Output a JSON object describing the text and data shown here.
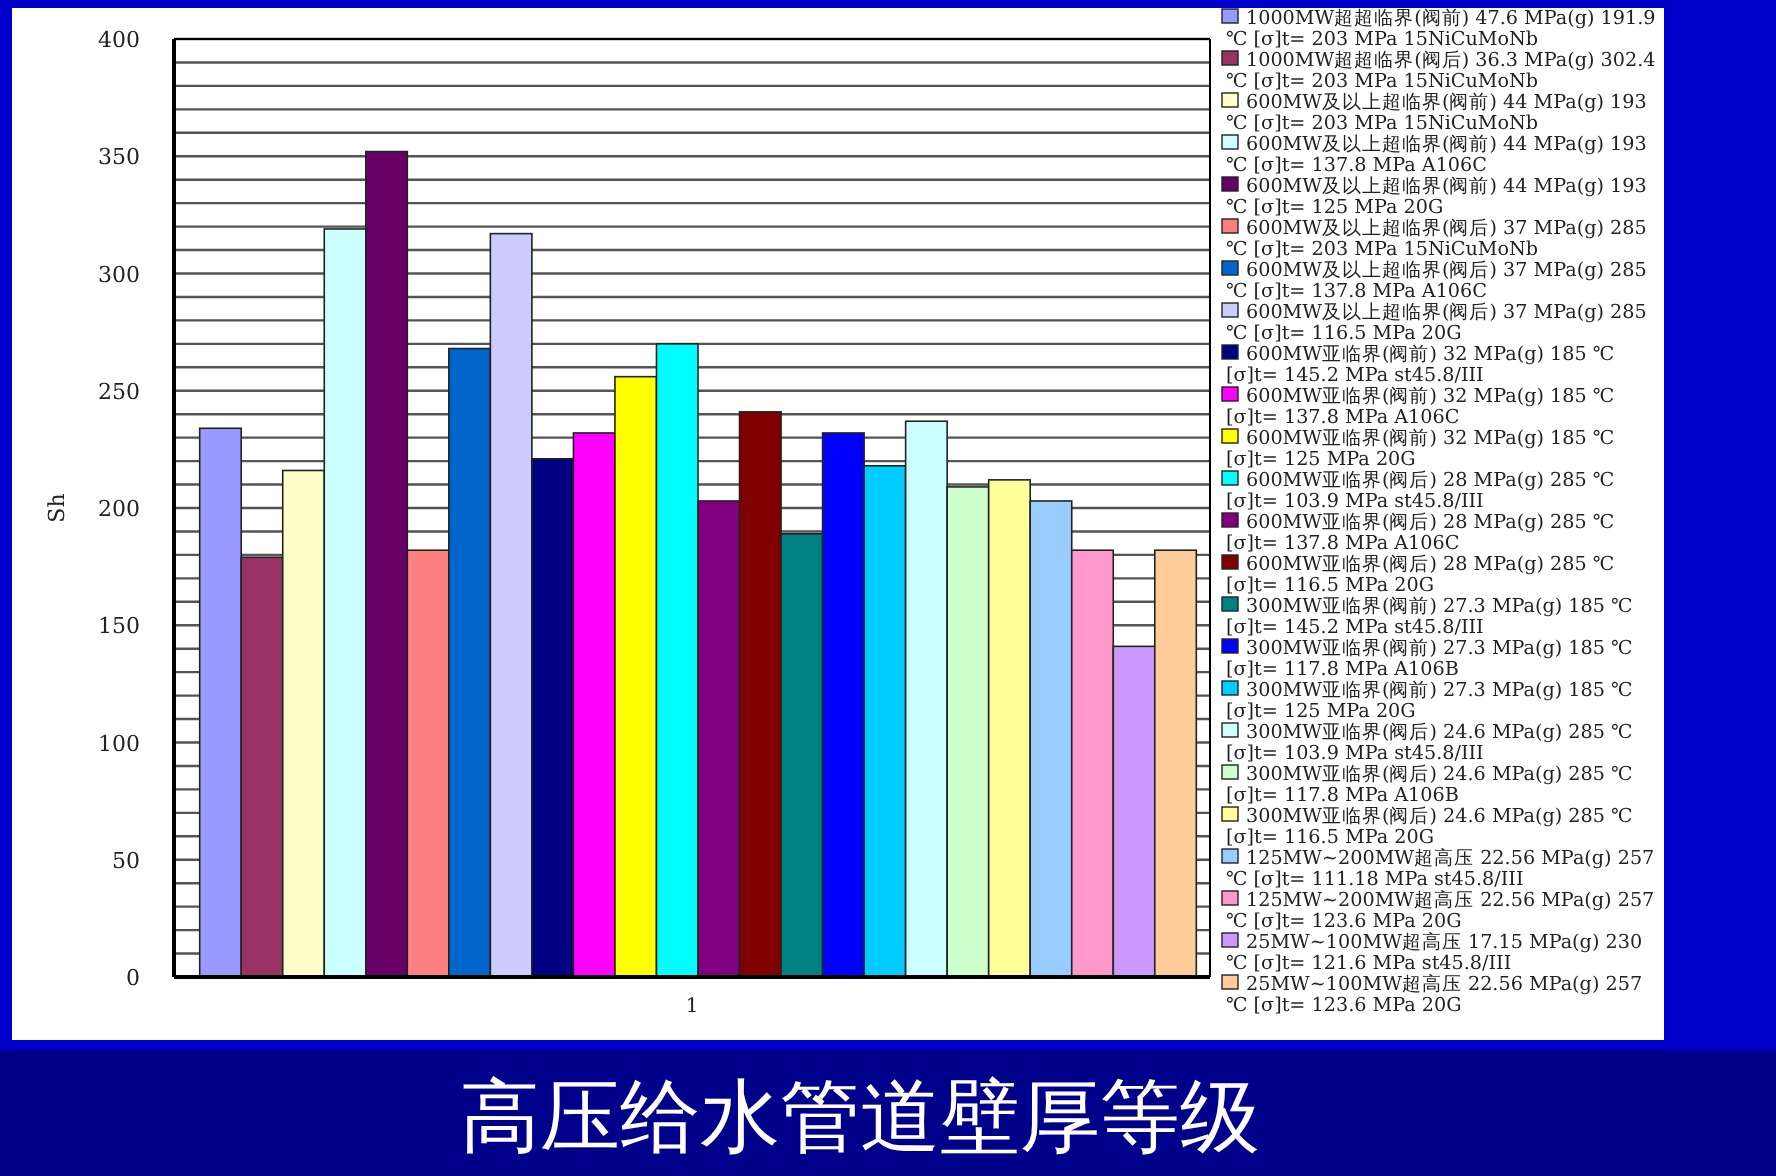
{
  "chart_data": {
    "type": "bar",
    "title": "高压给水管道壁厚等级",
    "ylabel": "Sh",
    "categories": [
      "1"
    ],
    "ylim": [
      0,
      400
    ],
    "yticks": [
      0,
      50,
      100,
      150,
      200,
      250,
      300,
      350,
      400
    ],
    "grid": "y",
    "legend": "right",
    "series": [
      {
        "name": "1000MW超超临界(阀前) 47.6 MPa(g) 191.9 ℃ [σ]t= 203 MPa 15NiCuMoNb",
        "color": "#9999ff",
        "values": [
          234
        ]
      },
      {
        "name": "1000MW超超临界(阀后) 36.3 MPa(g) 302.4 ℃ [σ]t= 203 MPa 15NiCuMoNb",
        "color": "#993366",
        "values": [
          179
        ]
      },
      {
        "name": "600MW及以上超临界(阀前) 44 MPa(g) 193 ℃ [σ]t= 203 MPa 15NiCuMoNb",
        "color": "#ffffcc",
        "values": [
          216
        ]
      },
      {
        "name": "600MW及以上超临界(阀前) 44 MPa(g) 193 ℃ [σ]t= 137.8 MPa A106C",
        "color": "#ccffff",
        "values": [
          319
        ]
      },
      {
        "name": "600MW及以上超临界(阀前) 44 MPa(g) 193 ℃ [σ]t= 125 MPa 20G",
        "color": "#660066",
        "values": [
          352
        ]
      },
      {
        "name": "600MW及以上超临界(阀后) 37 MPa(g) 285 ℃ [σ]t= 203 MPa 15NiCuMoNb",
        "color": "#ff8080",
        "values": [
          182
        ]
      },
      {
        "name": "600MW及以上超临界(阀后) 37 MPa(g) 285 ℃ [σ]t= 137.8 MPa A106C",
        "color": "#0066cc",
        "values": [
          268
        ]
      },
      {
        "name": "600MW及以上超临界(阀后) 37 MPa(g) 285 ℃ [σ]t= 116.5 MPa 20G",
        "color": "#ccccff",
        "values": [
          317
        ]
      },
      {
        "name": "600MW亚临界(阀前) 32 MPa(g) 185 ℃ [σ]t= 145.2 MPa st45.8/III",
        "color": "#000080",
        "values": [
          221
        ]
      },
      {
        "name": "600MW亚临界(阀前) 32 MPa(g) 185 ℃ [σ]t= 137.8 MPa A106C",
        "color": "#ff00ff",
        "values": [
          232
        ]
      },
      {
        "name": "600MW亚临界(阀前) 32 MPa(g) 185 ℃ [σ]t= 125 MPa 20G",
        "color": "#ffff00",
        "values": [
          256
        ]
      },
      {
        "name": "600MW亚临界(阀后) 28 MPa(g) 285 ℃ [σ]t= 103.9 MPa st45.8/III",
        "color": "#00ffff",
        "values": [
          270
        ]
      },
      {
        "name": "600MW亚临界(阀后) 28 MPa(g) 285 ℃ [σ]t= 137.8 MPa A106C",
        "color": "#800080",
        "values": [
          203
        ]
      },
      {
        "name": "600MW亚临界(阀后) 28 MPa(g) 285 ℃ [σ]t= 116.5 MPa 20G",
        "color": "#800000",
        "values": [
          241
        ]
      },
      {
        "name": "300MW亚临界(阀前) 27.3 MPa(g) 185 ℃ [σ]t= 145.2 MPa st45.8/III",
        "color": "#008080",
        "values": [
          189
        ]
      },
      {
        "name": "300MW亚临界(阀前) 27.3 MPa(g) 185 ℃ [σ]t= 117.8 MPa A106B",
        "color": "#0000ff",
        "values": [
          232
        ]
      },
      {
        "name": "300MW亚临界(阀前) 27.3 MPa(g) 185 ℃ [σ]t= 125 MPa 20G",
        "color": "#00ccff",
        "values": [
          218
        ]
      },
      {
        "name": "300MW亚临界(阀后) 24.6 MPa(g) 285 ℃ [σ]t= 103.9 MPa st45.8/III",
        "color": "#ccffff",
        "values": [
          237
        ]
      },
      {
        "name": "300MW亚临界(阀后) 24.6 MPa(g) 285 ℃ [σ]t= 117.8 MPa A106B",
        "color": "#ccffcc",
        "values": [
          209
        ]
      },
      {
        "name": "300MW亚临界(阀后) 24.6 MPa(g) 285 ℃ [σ]t= 116.5 MPa 20G",
        "color": "#ffff99",
        "values": [
          212
        ]
      },
      {
        "name": "125MW~200MW超高压 22.56 MPa(g) 257 ℃ [σ]t= 111.18 MPa st45.8/III",
        "color": "#99ccff",
        "values": [
          203
        ]
      },
      {
        "name": "125MW~200MW超高压 22.56 MPa(g) 257 ℃ [σ]t= 123.6 MPa 20G",
        "color": "#ff99cc",
        "values": [
          182
        ]
      },
      {
        "name": "25MW~100MW超高压 17.15 MPa(g) 230 ℃ [σ]t= 121.6 MPa st45.8/III",
        "color": "#cc99ff",
        "values": [
          141
        ]
      },
      {
        "name": "25MW~100MW超高压 22.56 MPa(g) 257 ℃ [σ]t= 123.6 MPa 20G",
        "color": "#ffcc99",
        "values": [
          182
        ]
      }
    ]
  }
}
